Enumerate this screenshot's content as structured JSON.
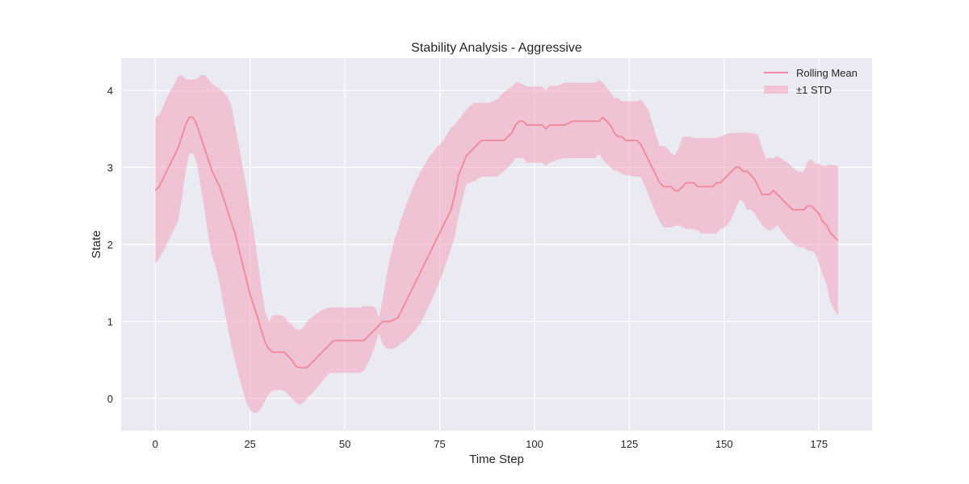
{
  "chart_data": {
    "type": "line",
    "title": "Stability Analysis - Aggressive",
    "xlabel": "Time Step",
    "ylabel": "State",
    "xlim": [
      -9,
      189
    ],
    "ylim": [
      -0.42,
      4.42
    ],
    "xticks": [
      0,
      25,
      50,
      75,
      100,
      125,
      150,
      175
    ],
    "yticks": [
      0,
      1,
      2,
      3,
      4
    ],
    "grid": true,
    "legend": {
      "placement": "top-right",
      "entries": [
        {
          "label": "Rolling Mean",
          "kind": "line"
        },
        {
          "label": "±1 STD",
          "kind": "band"
        }
      ]
    },
    "colors": {
      "plot_background": "#eaeaf2",
      "grid": "#ffffff",
      "line": "#f28b9e",
      "band": "#f4a3bb"
    },
    "series": [
      {
        "name": "Rolling Mean",
        "x": [
          0,
          1,
          3,
          5,
          6,
          7,
          8,
          9,
          10,
          11,
          12,
          13,
          15,
          17,
          19,
          21,
          23,
          25,
          27,
          28,
          29,
          30,
          31,
          32,
          34,
          36,
          37,
          38,
          40,
          42,
          44,
          45,
          47,
          50,
          53,
          55,
          57,
          58,
          59,
          60,
          62,
          64,
          66,
          68,
          70,
          72,
          74,
          76,
          78,
          79,
          80,
          82,
          84,
          86,
          88,
          90,
          92,
          94,
          95,
          96,
          97,
          98,
          100,
          102,
          103,
          104,
          106,
          108,
          110,
          112,
          114,
          116,
          117,
          118,
          120,
          121,
          122,
          123,
          124,
          125,
          126,
          127,
          128,
          130,
          132,
          133,
          134,
          135,
          136,
          137,
          138,
          139,
          140,
          141,
          142,
          143,
          144,
          145,
          146,
          147,
          148,
          149,
          150,
          151,
          152,
          153,
          154,
          155,
          156,
          157,
          158,
          159,
          160,
          161,
          162,
          163,
          164,
          165,
          166,
          167,
          168,
          169,
          170,
          171,
          172,
          173,
          174,
          175,
          176,
          177,
          178,
          179,
          180
        ],
        "y": [
          2.7,
          2.75,
          2.95,
          3.15,
          3.25,
          3.4,
          3.55,
          3.65,
          3.65,
          3.55,
          3.4,
          3.25,
          2.95,
          2.75,
          2.45,
          2.15,
          1.75,
          1.35,
          1.05,
          0.88,
          0.72,
          0.64,
          0.6,
          0.6,
          0.6,
          0.5,
          0.42,
          0.4,
          0.4,
          0.5,
          0.6,
          0.65,
          0.75,
          0.75,
          0.75,
          0.75,
          0.85,
          0.9,
          0.95,
          1.0,
          1.0,
          1.05,
          1.25,
          1.45,
          1.65,
          1.85,
          2.05,
          2.25,
          2.45,
          2.65,
          2.9,
          3.15,
          3.25,
          3.35,
          3.35,
          3.35,
          3.35,
          3.45,
          3.55,
          3.6,
          3.6,
          3.55,
          3.55,
          3.55,
          3.5,
          3.55,
          3.55,
          3.55,
          3.6,
          3.6,
          3.6,
          3.6,
          3.6,
          3.65,
          3.55,
          3.45,
          3.4,
          3.4,
          3.35,
          3.35,
          3.35,
          3.35,
          3.3,
          3.1,
          2.9,
          2.8,
          2.75,
          2.75,
          2.75,
          2.7,
          2.7,
          2.75,
          2.8,
          2.8,
          2.8,
          2.75,
          2.75,
          2.75,
          2.75,
          2.75,
          2.8,
          2.8,
          2.85,
          2.9,
          2.95,
          3.0,
          3.0,
          2.95,
          2.95,
          2.9,
          2.85,
          2.75,
          2.65,
          2.65,
          2.65,
          2.7,
          2.65,
          2.6,
          2.55,
          2.5,
          2.45,
          2.45,
          2.45,
          2.45,
          2.5,
          2.5,
          2.45,
          2.4,
          2.3,
          2.25,
          2.15,
          2.1,
          2.05
        ]
      },
      {
        "name": "±1 STD",
        "x": [
          0,
          1,
          2,
          3,
          4,
          5,
          6,
          7,
          8,
          9,
          10,
          11,
          12,
          13,
          14,
          15,
          16,
          17,
          18,
          19,
          20,
          21,
          22,
          23,
          24,
          25,
          26,
          27,
          28,
          29,
          30,
          31,
          32,
          33,
          34,
          35,
          36,
          37,
          38,
          39,
          40,
          42,
          44,
          46,
          48,
          50,
          52,
          54,
          55,
          56,
          57,
          58,
          59,
          60,
          61,
          62,
          63,
          64,
          65,
          66,
          67,
          68,
          70,
          72,
          74,
          76,
          78,
          79,
          80,
          82,
          84,
          86,
          88,
          90,
          92,
          94,
          95,
          96,
          97,
          98,
          100,
          102,
          103,
          104,
          106,
          108,
          110,
          112,
          114,
          116,
          117,
          118,
          120,
          121,
          122,
          123,
          124,
          125,
          126,
          127,
          128,
          130,
          132,
          133,
          134,
          135,
          136,
          137,
          138,
          139,
          140,
          141,
          142,
          143,
          144,
          145,
          146,
          147,
          148,
          149,
          150,
          151,
          152,
          153,
          154,
          155,
          156,
          157,
          158,
          159,
          160,
          161,
          162,
          163,
          164,
          165,
          166,
          167,
          168,
          169,
          170,
          171,
          172,
          173,
          174,
          175,
          176,
          177,
          178,
          179,
          180
        ],
        "lower": [
          1.75,
          1.82,
          1.9,
          2.0,
          2.1,
          2.2,
          2.3,
          2.6,
          2.95,
          3.18,
          3.18,
          3.05,
          2.75,
          2.45,
          2.1,
          1.85,
          1.7,
          1.5,
          1.2,
          0.95,
          0.7,
          0.5,
          0.3,
          0.12,
          -0.05,
          -0.15,
          -0.19,
          -0.18,
          -0.12,
          -0.02,
          0.06,
          0.1,
          0.11,
          0.11,
          0.1,
          0.05,
          0.0,
          -0.05,
          -0.08,
          -0.06,
          0.0,
          0.1,
          0.22,
          0.33,
          0.33,
          0.33,
          0.33,
          0.33,
          0.36,
          0.45,
          0.55,
          0.7,
          0.85,
          0.7,
          0.65,
          0.64,
          0.65,
          0.68,
          0.72,
          0.75,
          0.8,
          0.85,
          0.98,
          1.18,
          1.4,
          1.65,
          1.95,
          2.1,
          2.38,
          2.78,
          2.82,
          2.88,
          2.88,
          2.88,
          2.95,
          3.05,
          3.12,
          3.12,
          3.12,
          3.06,
          3.06,
          3.06,
          3.02,
          3.06,
          3.1,
          3.12,
          3.12,
          3.12,
          3.12,
          3.12,
          3.18,
          3.1,
          3.0,
          2.96,
          2.95,
          2.92,
          2.9,
          2.9,
          2.88,
          2.88,
          2.88,
          2.65,
          2.4,
          2.3,
          2.22,
          2.22,
          2.22,
          2.24,
          2.25,
          2.22,
          2.2,
          2.2,
          2.2,
          2.18,
          2.14,
          2.14,
          2.14,
          2.14,
          2.14,
          2.2,
          2.22,
          2.26,
          2.34,
          2.46,
          2.58,
          2.56,
          2.45,
          2.45,
          2.4,
          2.32,
          2.25,
          2.2,
          2.18,
          2.2,
          2.25,
          2.18,
          2.12,
          2.06,
          2.02,
          1.98,
          1.96,
          1.96,
          1.92,
          1.92,
          1.88,
          1.75,
          1.6,
          1.48,
          1.25,
          1.15,
          1.08
        ],
        "upper": [
          3.65,
          3.68,
          3.78,
          3.9,
          4.0,
          4.08,
          4.18,
          4.2,
          4.15,
          4.14,
          4.14,
          4.15,
          4.2,
          4.2,
          4.15,
          4.08,
          4.05,
          4.02,
          3.98,
          3.92,
          3.82,
          3.55,
          3.3,
          3.02,
          2.75,
          2.45,
          2.15,
          1.8,
          1.42,
          1.12,
          1.0,
          1.08,
          1.08,
          1.08,
          1.06,
          1.0,
          0.96,
          0.9,
          0.89,
          0.92,
          1.0,
          1.08,
          1.15,
          1.18,
          1.18,
          1.18,
          1.18,
          1.18,
          1.2,
          1.2,
          1.2,
          1.18,
          1.05,
          1.3,
          1.6,
          1.85,
          2.05,
          2.2,
          2.35,
          2.5,
          2.62,
          2.75,
          2.95,
          3.12,
          3.25,
          3.35,
          3.52,
          3.55,
          3.62,
          3.75,
          3.84,
          3.84,
          3.84,
          3.88,
          3.98,
          4.05,
          4.1,
          4.1,
          4.08,
          4.05,
          4.05,
          4.05,
          4.0,
          4.06,
          4.06,
          4.1,
          4.1,
          4.1,
          4.1,
          4.1,
          4.14,
          4.1,
          3.98,
          3.9,
          3.9,
          3.86,
          3.86,
          3.86,
          3.86,
          3.86,
          3.88,
          3.75,
          3.42,
          3.28,
          3.28,
          3.25,
          3.18,
          3.16,
          3.25,
          3.4,
          3.4,
          3.4,
          3.38,
          3.38,
          3.38,
          3.38,
          3.38,
          3.38,
          3.38,
          3.4,
          3.42,
          3.44,
          3.45,
          3.45,
          3.45,
          3.45,
          3.45,
          3.45,
          3.44,
          3.42,
          3.25,
          3.12,
          3.12,
          3.12,
          3.15,
          3.12,
          3.08,
          3.05,
          3.0,
          2.96,
          2.94,
          2.95,
          3.08,
          3.1,
          3.05,
          3.05,
          3.02,
          3.02,
          3.04,
          3.03,
          3.02
        ]
      }
    ]
  }
}
